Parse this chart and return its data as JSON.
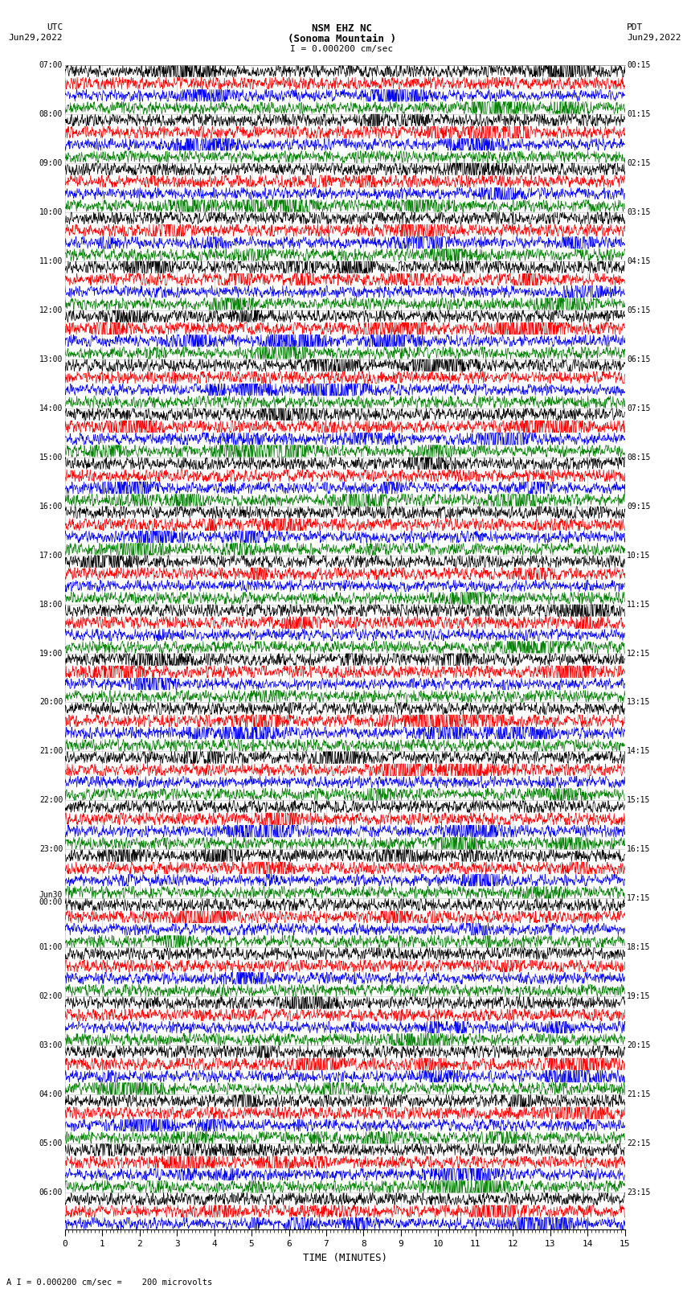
{
  "title_line1": "NSM EHZ NC",
  "title_line2": "(Sonoma Mountain )",
  "title_scale": "I = 0.000200 cm/sec",
  "left_header": "UTC",
  "left_date": "Jun29,2022",
  "right_header": "PDT",
  "right_date": "Jun29,2022",
  "xlabel": "TIME (MINUTES)",
  "bottom_note": "A I = 0.000200 cm/sec =    200 microvolts",
  "xlim": [
    0,
    15
  ],
  "xticks": [
    0,
    1,
    2,
    3,
    4,
    5,
    6,
    7,
    8,
    9,
    10,
    11,
    12,
    13,
    14,
    15
  ],
  "background_color": "#ffffff",
  "trace_colors": [
    "#000000",
    "#ff0000",
    "#0000ff",
    "#008000"
  ],
  "left_labels": [
    "07:00",
    "",
    "",
    "",
    "08:00",
    "",
    "",
    "",
    "09:00",
    "",
    "",
    "",
    "10:00",
    "",
    "",
    "",
    "11:00",
    "",
    "",
    "",
    "12:00",
    "",
    "",
    "",
    "13:00",
    "",
    "",
    "",
    "14:00",
    "",
    "",
    "",
    "15:00",
    "",
    "",
    "",
    "16:00",
    "",
    "",
    "",
    "17:00",
    "",
    "",
    "",
    "18:00",
    "",
    "",
    "",
    "19:00",
    "",
    "",
    "",
    "20:00",
    "",
    "",
    "",
    "21:00",
    "",
    "",
    "",
    "22:00",
    "",
    "",
    "",
    "23:00",
    "",
    "",
    "",
    "Jun30\n00:00",
    "",
    "",
    "",
    "01:00",
    "",
    "",
    "",
    "02:00",
    "",
    "",
    "",
    "03:00",
    "",
    "",
    "",
    "04:00",
    "",
    "",
    "",
    "05:00",
    "",
    "",
    "",
    "06:00",
    "",
    ""
  ],
  "right_labels": [
    "00:15",
    "",
    "",
    "",
    "01:15",
    "",
    "",
    "",
    "02:15",
    "",
    "",
    "",
    "03:15",
    "",
    "",
    "",
    "04:15",
    "",
    "",
    "",
    "05:15",
    "",
    "",
    "",
    "06:15",
    "",
    "",
    "",
    "07:15",
    "",
    "",
    "",
    "08:15",
    "",
    "",
    "",
    "09:15",
    "",
    "",
    "",
    "10:15",
    "",
    "",
    "",
    "11:15",
    "",
    "",
    "",
    "12:15",
    "",
    "",
    "",
    "13:15",
    "",
    "",
    "",
    "14:15",
    "",
    "",
    "",
    "15:15",
    "",
    "",
    "",
    "16:15",
    "",
    "",
    "",
    "17:15",
    "",
    "",
    "",
    "18:15",
    "",
    "",
    "",
    "19:15",
    "",
    "",
    "",
    "20:15",
    "",
    "",
    "",
    "21:15",
    "",
    "",
    "",
    "22:15",
    "",
    "",
    "",
    "23:15",
    "",
    ""
  ],
  "n_rows": 95,
  "n_traces_per_group": 4,
  "figsize": [
    8.5,
    16.13
  ],
  "dpi": 100
}
